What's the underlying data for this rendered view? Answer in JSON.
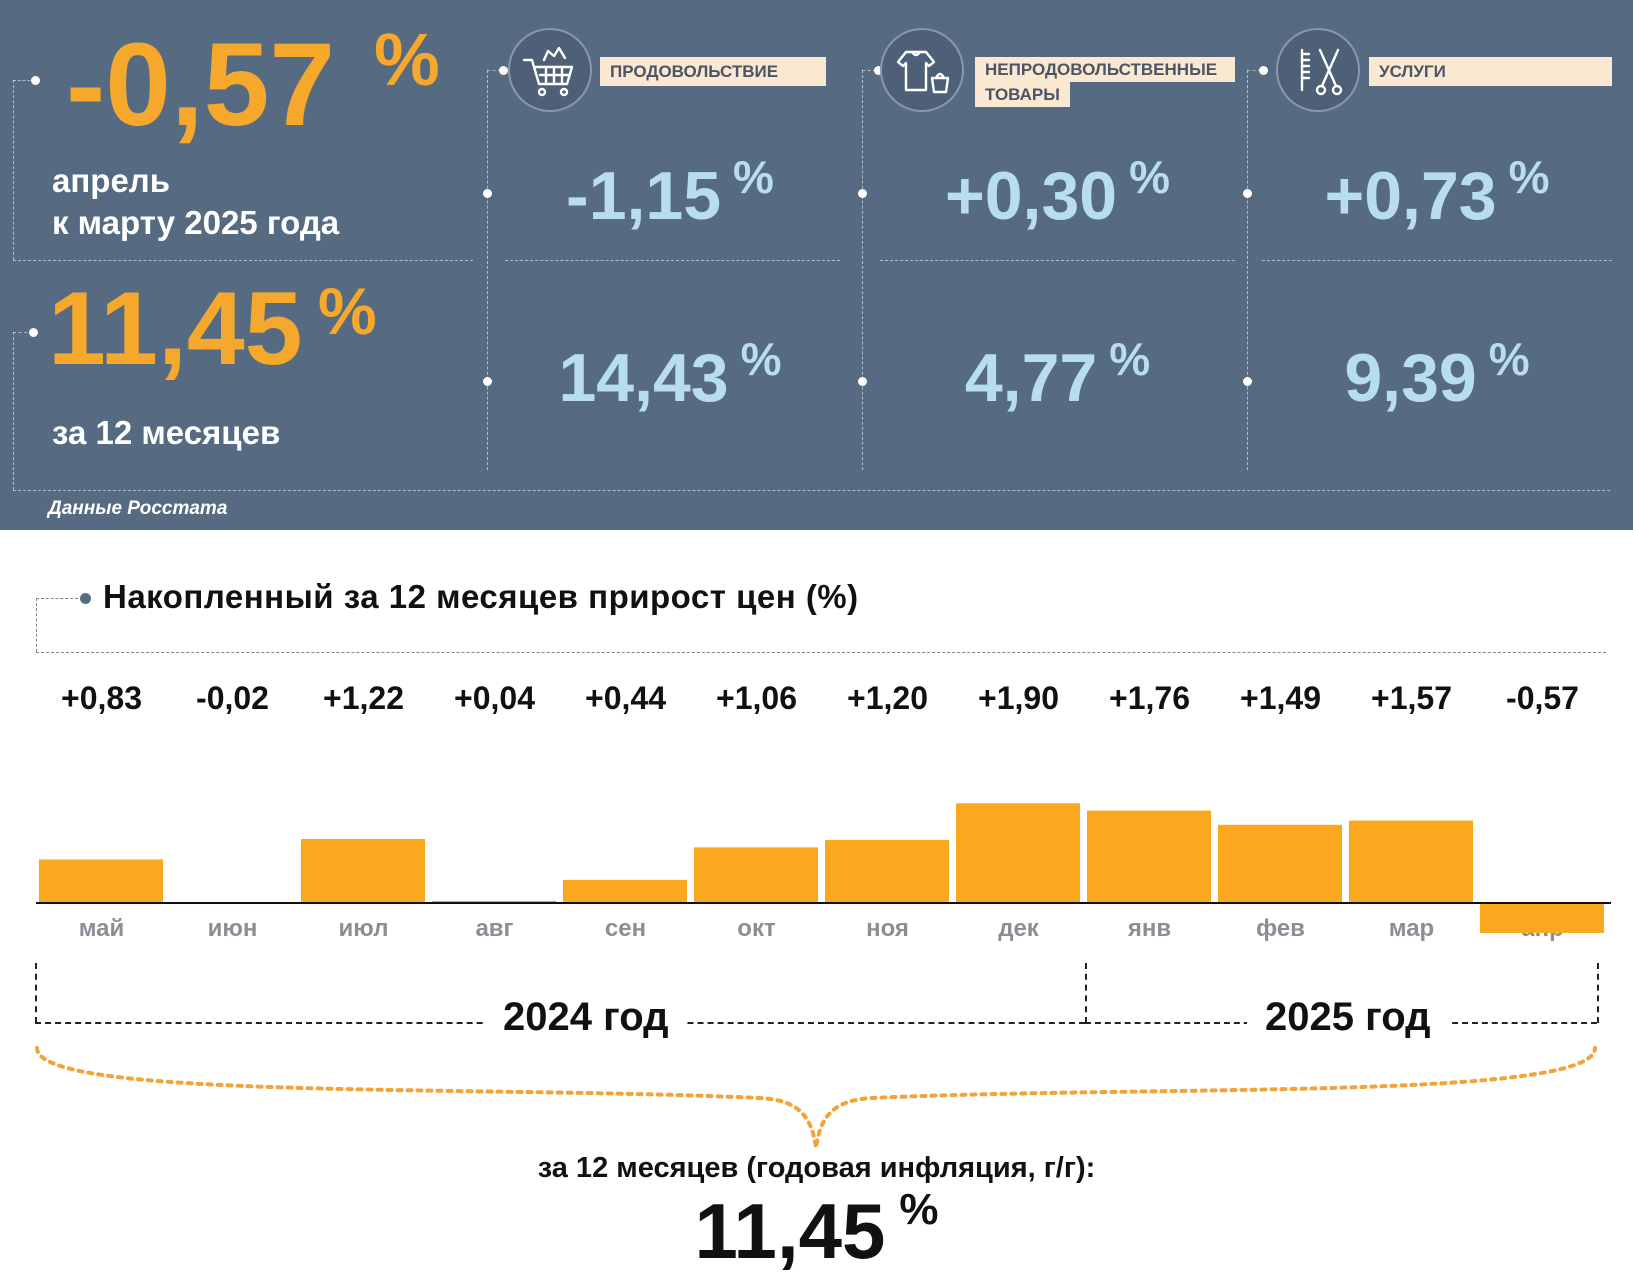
{
  "header": {
    "monthly_value": "-0,57",
    "monthly_unit": "%",
    "monthly_caption_line1": "апрель",
    "monthly_caption_line2": "к марту 2025 года",
    "annual_value": "11,45",
    "annual_unit": "%",
    "annual_caption": "за 12 месяцев",
    "source": "Данные Росстата"
  },
  "categories": [
    {
      "label_lines": [
        "ПРОДОВОЛЬСТВИЕ"
      ],
      "icon": "shopping-cart-icon",
      "monthly_value": "-1,15",
      "annual_value": "14,43",
      "unit": "%"
    },
    {
      "label_lines": [
        "НЕПРОДОВОЛЬСТВЕННЫЕ",
        "ТОВАРЫ"
      ],
      "icon": "clothes-bag-icon",
      "monthly_value": "+0,30",
      "annual_value": "4,77",
      "unit": "%"
    },
    {
      "label_lines": [
        "УСЛУГИ"
      ],
      "icon": "comb-scissors-icon",
      "monthly_value": "+0,73",
      "annual_value": "9,39",
      "unit": "%"
    }
  ],
  "chart_data": {
    "type": "bar",
    "title": "Накопленный за 12 месяцев прирост цен (%)",
    "categories": [
      "май",
      "июн",
      "июл",
      "авг",
      "сен",
      "окт",
      "ноя",
      "дек",
      "янв",
      "фев",
      "мар",
      "апр"
    ],
    "value_labels": [
      "+0,83",
      "-0,02",
      "+1,22",
      "+0,04",
      "+0,44",
      "+1,06",
      "+1,20",
      "+1,90",
      "+1,76",
      "+1,49",
      "+1,57",
      "-0,57"
    ],
    "values": [
      0.83,
      -0.02,
      1.22,
      0.04,
      0.44,
      1.06,
      1.2,
      1.9,
      1.76,
      1.49,
      1.57,
      -0.57
    ],
    "year_groups": [
      {
        "label": "2024 год",
        "months": 8
      },
      {
        "label": "2025 год",
        "months": 4
      }
    ],
    "bar_color": "#fba81e",
    "summary_label": "за 12 месяцев (годовая инфляция, г/г):",
    "summary_value": "11,45",
    "summary_unit": "%"
  },
  "colors": {
    "panel_bg": "#566b82",
    "accent_orange": "#f6a82c",
    "value_blue": "#b9ddf0",
    "label_bg": "#fbe8d3"
  }
}
